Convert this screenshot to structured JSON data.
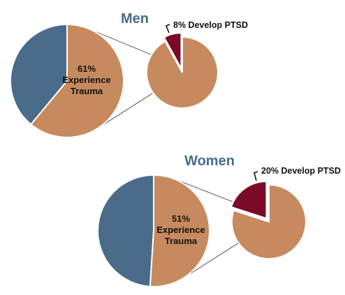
{
  "colors": {
    "blue": "#4a6b8a",
    "tan": "#c68a5e",
    "maroon": "#7a0a26",
    "title": "#4a6b8a"
  },
  "chart_data": [
    {
      "type": "pie",
      "title": "Men",
      "experience": {
        "label_value": "61%",
        "label_line1": "Experience",
        "label_line2": "Trauma",
        "percent": 61
      },
      "develop": {
        "label": "8% Develop PTSD",
        "percent": 8
      }
    },
    {
      "type": "pie",
      "title": "Women",
      "experience": {
        "label_value": "51%",
        "label_line1": "Experience",
        "label_line2": "Trauma",
        "percent": 51
      },
      "develop": {
        "label": "20% Develop PTSD",
        "percent": 20
      }
    }
  ]
}
